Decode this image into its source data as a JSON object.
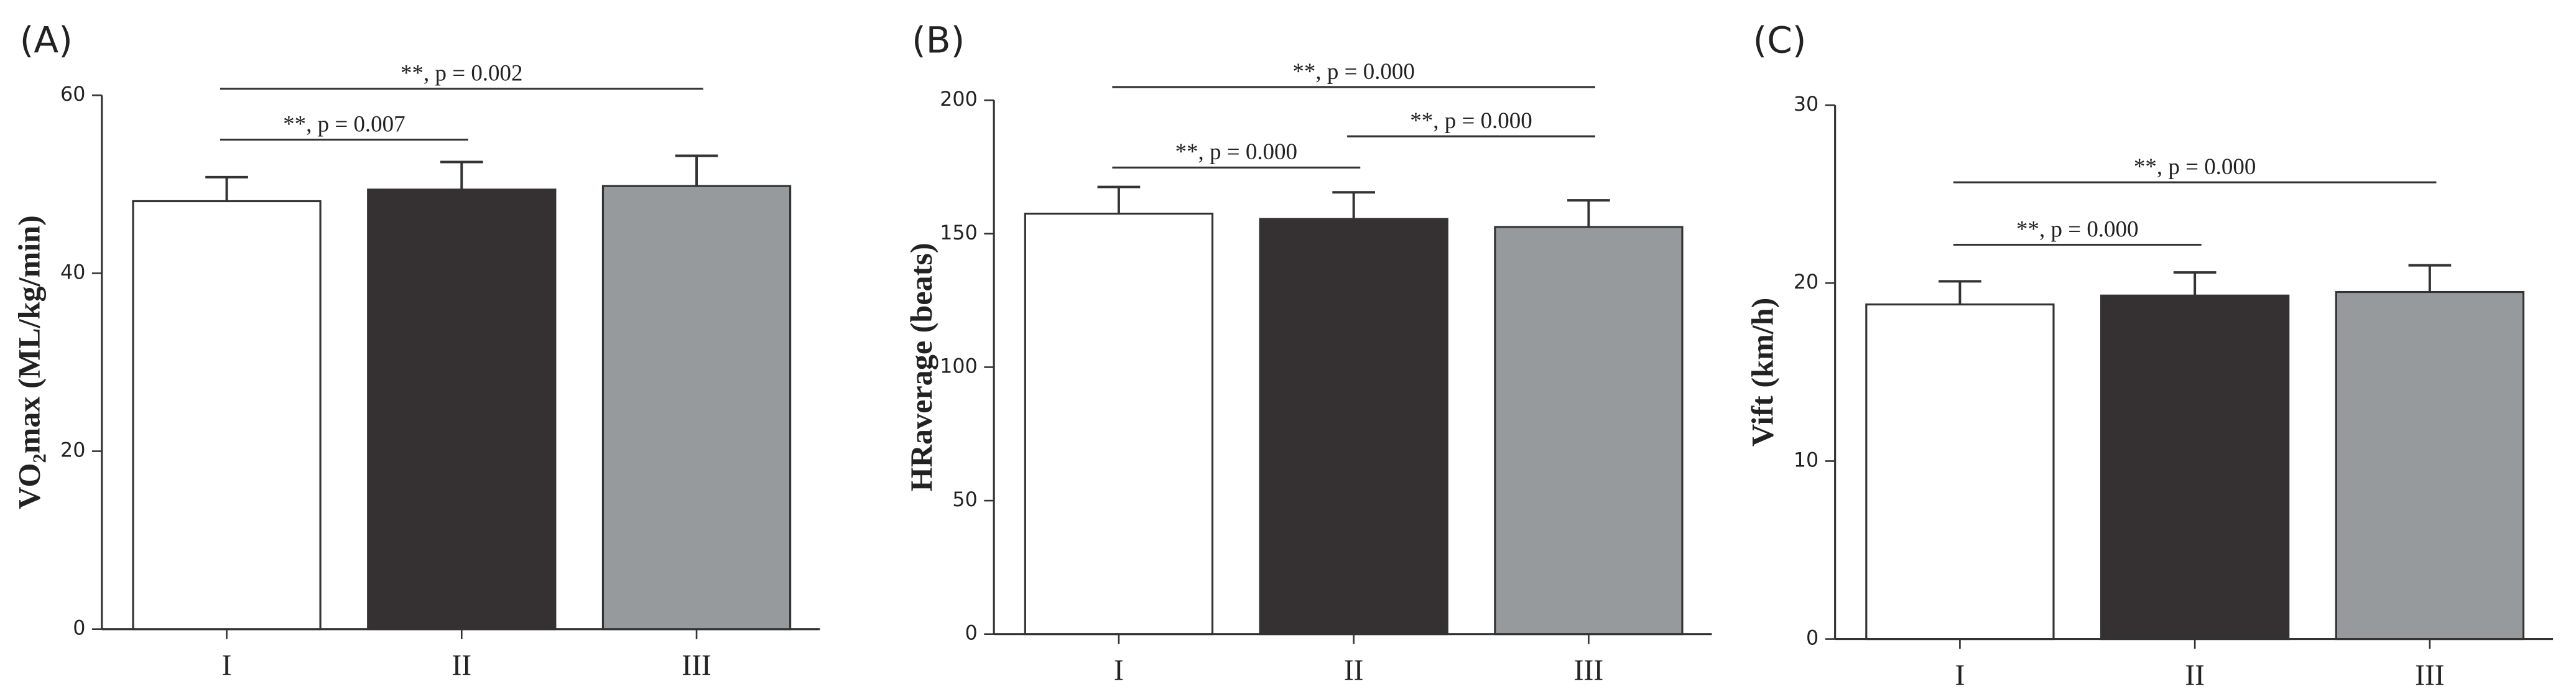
{
  "chart_data": [
    {
      "type": "bar",
      "panel": "(A)",
      "y_label": "VO₂max (ML/kg/min)",
      "categories": [
        "I",
        "II",
        "III"
      ],
      "values": [
        48.1,
        49.4,
        49.8
      ],
      "errors": [
        2.7,
        3.1,
        3.4
      ],
      "colors": [
        "#ffffff",
        "#353132",
        "#969a9d"
      ],
      "ylim": [
        0,
        60
      ],
      "yticks": [
        0,
        20,
        40,
        60
      ],
      "brackets": [
        {
          "from": "I",
          "to": "III",
          "label": "**, p = 0.002"
        },
        {
          "from": "I",
          "to": "II",
          "label": "**, p = 0.007"
        }
      ]
    },
    {
      "type": "bar",
      "panel": "(B)",
      "y_label": "HRaverage (beats)",
      "categories": [
        "I",
        "II",
        "III"
      ],
      "values": [
        157.5,
        155.5,
        152.5
      ],
      "errors": [
        10,
        10,
        10
      ],
      "colors": [
        "#ffffff",
        "#353132",
        "#969a9d"
      ],
      "ylim": [
        0,
        200
      ],
      "yticks": [
        0,
        50,
        100,
        150,
        200
      ],
      "brackets": [
        {
          "from": "I",
          "to": "III",
          "label": "**, p = 0.000"
        },
        {
          "from": "II",
          "to": "III",
          "label": "**, p = 0.000"
        },
        {
          "from": "I",
          "to": "II",
          "label": "**, p = 0.000"
        }
      ]
    },
    {
      "type": "bar",
      "panel": "(C)",
      "y_label": "Vift (km/h)",
      "categories": [
        "I",
        "II",
        "III"
      ],
      "values": [
        18.8,
        19.3,
        19.5
      ],
      "errors": [
        1.3,
        1.3,
        1.5
      ],
      "colors": [
        "#ffffff",
        "#353132",
        "#969a9d"
      ],
      "ylim": [
        0,
        30
      ],
      "yticks": [
        0,
        10,
        20,
        30
      ],
      "brackets": [
        {
          "from": "I",
          "to": "III",
          "label": "**, p = 0.000"
        },
        {
          "from": "I",
          "to": "II",
          "label": "**, p = 0.000"
        }
      ]
    }
  ]
}
